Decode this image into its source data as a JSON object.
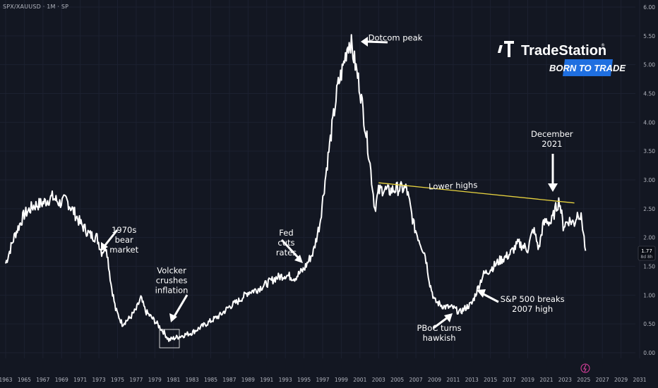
{
  "header": {
    "symbol": "SPX/XAUUSD · 1M · SP"
  },
  "brand": {
    "name": "TradeStation",
    "trademark": "®",
    "tagline": "BORN TO TRADE"
  },
  "price_tag": {
    "value": "1.77",
    "countdown": "8d 8h"
  },
  "colors": {
    "background": "#131722",
    "line": "#ffffff",
    "trendline": "#e8d33f",
    "tagline_bg": "#1f6fe0",
    "grid": "#1c2130"
  },
  "chart_data": {
    "type": "line",
    "title": "",
    "xlabel": "",
    "ylabel": "",
    "ylim": [
      0,
      6
    ],
    "xlim": [
      1963,
      2031
    ],
    "yticks": [
      "0.00",
      "0.50",
      "1.00",
      "1.50",
      "2.00",
      "2.50",
      "3.00",
      "3.50",
      "4.00",
      "4.50",
      "5.00",
      "5.50",
      "6.00"
    ],
    "xticks": [
      "1963",
      "1965",
      "1967",
      "1969",
      "1971",
      "1973",
      "1975",
      "1977",
      "1979",
      "1981",
      "1983",
      "1985",
      "1987",
      "1989",
      "1991",
      "1993",
      "1995",
      "1997",
      "1999",
      "2001",
      "2003",
      "2005",
      "2007",
      "2009",
      "2011",
      "2013",
      "2015",
      "2017",
      "2019",
      "2021",
      "2023",
      "2025",
      "2027",
      "2029",
      "2031"
    ],
    "grid": true,
    "series": [
      {
        "x": [
          1963,
          1964,
          1965,
          1966,
          1967,
          1968,
          1968.8,
          1969.5,
          1970.3,
          1971,
          1972,
          1972.8,
          1973.3,
          1973.8,
          1974.3,
          1974.8,
          1975.5,
          1976.3,
          1977,
          1977.5,
          1978,
          1979,
          1980,
          1980.5,
          1981,
          1982,
          1983,
          1984,
          1985,
          1986,
          1987,
          1988,
          1989,
          1990,
          1991,
          1992,
          1993,
          1994,
          1995,
          1996,
          1996.7,
          1997.5,
          1998,
          1998.6,
          1999.1,
          1999.7,
          2000,
          2000.5,
          2001,
          2001.5,
          2002,
          2002.6,
          2003,
          2003.5,
          2004,
          2005,
          2006,
          2006.8,
          2007.5,
          2008,
          2008.5,
          2009,
          2010,
          2011,
          2011.7,
          2012.5,
          2013,
          2013.6,
          2014.2,
          2015,
          2016,
          2017,
          2018,
          2019,
          2019.6,
          2020.2,
          2020.6,
          2021,
          2021.5,
          2022,
          2022.4,
          2022.8,
          2023.4,
          2024,
          2024.4,
          2024.8,
          2025.2
        ],
        "y": [
          1.55,
          2.05,
          2.4,
          2.55,
          2.6,
          2.7,
          2.6,
          2.65,
          2.45,
          2.25,
          2.05,
          2.0,
          1.75,
          1.85,
          1.2,
          0.75,
          0.5,
          0.6,
          0.75,
          0.95,
          0.72,
          0.55,
          0.35,
          0.22,
          0.25,
          0.3,
          0.35,
          0.45,
          0.55,
          0.65,
          0.8,
          0.9,
          1.05,
          1.1,
          1.2,
          1.3,
          1.35,
          1.3,
          1.45,
          1.75,
          2.25,
          3.3,
          3.9,
          4.6,
          4.9,
          5.35,
          5.4,
          5.0,
          4.6,
          4.0,
          3.4,
          2.5,
          2.8,
          2.85,
          2.8,
          2.85,
          2.85,
          2.2,
          1.9,
          1.7,
          1.2,
          0.9,
          0.8,
          0.78,
          0.7,
          0.8,
          0.85,
          1.1,
          1.35,
          1.45,
          1.6,
          1.7,
          1.9,
          1.8,
          2.15,
          1.8,
          2.2,
          2.3,
          2.25,
          2.5,
          2.65,
          2.2,
          2.3,
          2.25,
          2.45,
          2.3,
          1.77
        ]
      },
      {
        "x": [
          2003,
          2024
        ],
        "y": [
          2.95,
          2.6
        ]
      }
    ],
    "annotations": [
      {
        "lines": [
          "1970s",
          "bear",
          "market"
        ],
        "x": 1975.7,
        "y": 2.08
      },
      {
        "lines": [
          "Volcker",
          "crushes",
          "inflation"
        ],
        "x": 1980.8,
        "y": 1.38
      },
      {
        "lines": [
          "Fed",
          "cuts",
          "rates"
        ],
        "x": 1993.1,
        "y": 2.03
      },
      {
        "lines": [
          "Dotcom peak"
        ],
        "x": 2004.8,
        "y": 5.42
      },
      {
        "lines": [
          "Lower highs"
        ],
        "x": 2011,
        "y": 2.85
      },
      {
        "lines": [
          "December",
          "2021"
        ],
        "x": 2021.6,
        "y": 3.75
      },
      {
        "lines": [
          "S&P 500 breaks",
          "2007 high"
        ],
        "x": 2019.5,
        "y": 0.88
      },
      {
        "lines": [
          "PBoC turns",
          "hawkish"
        ],
        "x": 2009.5,
        "y": 0.38
      }
    ]
  }
}
